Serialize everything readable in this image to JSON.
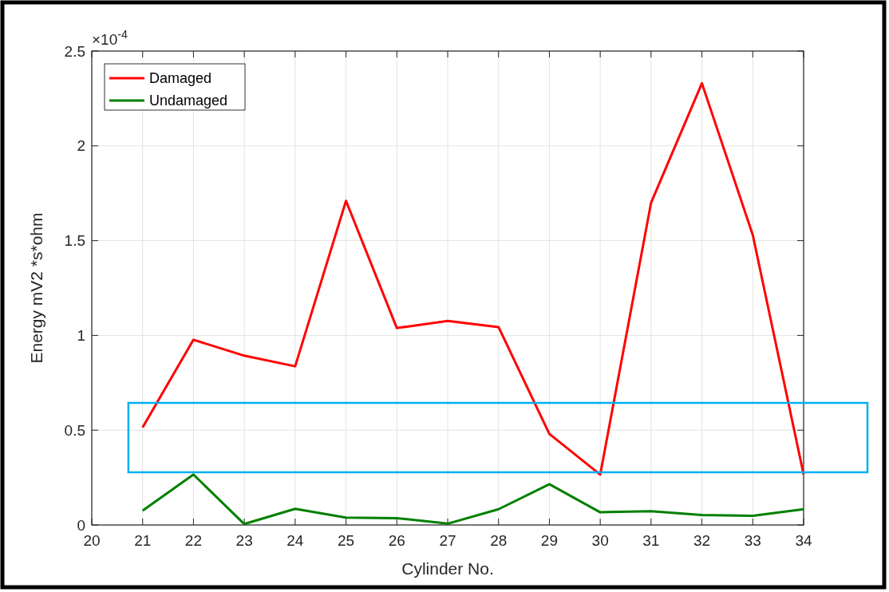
{
  "chart_data": {
    "type": "line",
    "xlabel": "Cylinder No.",
    "ylabel": "Energy mV2 *s*ohm",
    "annotations": [
      "×10$^{-4}$"
    ],
    "x": [
      21,
      22,
      23,
      24,
      25,
      26,
      27,
      28,
      29,
      30,
      31,
      32,
      33,
      34
    ],
    "series": [
      {
        "name": "Damaged",
        "color": "#ff0000",
        "values": [
          0.515,
          0.977,
          0.893,
          0.837,
          1.71,
          1.039,
          1.076,
          1.044,
          0.48,
          0.266,
          1.7,
          2.33,
          1.53,
          0.266
        ]
      },
      {
        "name": "Undamaged",
        "color": "#008000",
        "values": [
          0.076,
          0.266,
          0.005,
          0.085,
          0.039,
          0.036,
          0.007,
          0.083,
          0.215,
          0.067,
          0.073,
          0.053,
          0.048,
          0.083
        ]
      }
    ],
    "xlim": [
      20,
      34
    ],
    "xticks": [
      20,
      21,
      22,
      23,
      24,
      25,
      26,
      27,
      28,
      29,
      30,
      31,
      32,
      33,
      34
    ],
    "ylim": [
      0,
      2.5
    ],
    "yticks": [
      0,
      0.5,
      1,
      1.5,
      2,
      2.5
    ],
    "grid": true,
    "legend": "top left",
    "marker": "none",
    "line_style": "solid"
  }
}
